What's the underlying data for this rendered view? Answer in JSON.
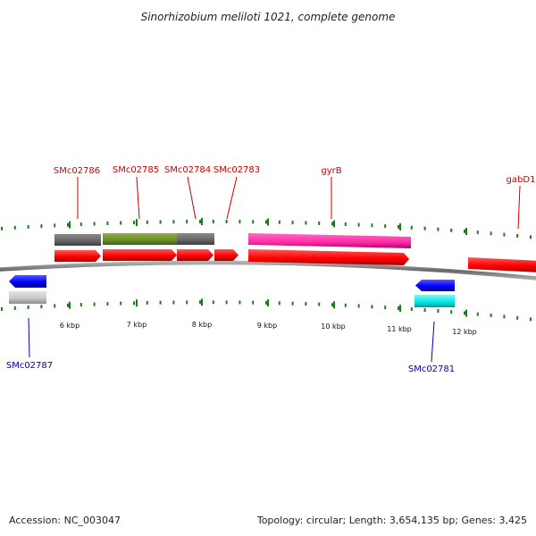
{
  "title": "Sinorhizobium meliloti 1021, complete genome",
  "footer": {
    "accession": "Accession: NC_003047",
    "summary": "Topology: circular; Length: 3,654,135 bp; Genes: 3,425"
  },
  "axis": {
    "tick_labels": [
      "6 kbp",
      "7 kbp",
      "8 kbp",
      "9 kbp",
      "10 kbp",
      "11 kbp",
      "12 kbp"
    ]
  },
  "gene_labels": {
    "forward": [
      "SMc02786",
      "SMc02785",
      "SMc02784",
      "SMc02783",
      "gyrB",
      "gabD1"
    ],
    "reverse": [
      "SMc02787",
      "SMc02781"
    ]
  },
  "colors": {
    "forward_label": "#cc0000",
    "reverse_label": "#0000aa",
    "tick": "#1e7a1e",
    "cds_forward": "#ff0000",
    "cds_reverse": "#0000ff",
    "feature_gray": "#6e6e6e",
    "feature_olive": "#6b8e23",
    "feature_pink": "#ff33aa",
    "feature_cyan": "#00e5e5",
    "feature_lightgray": "#c8c8c8",
    "backbone": "#777777"
  }
}
